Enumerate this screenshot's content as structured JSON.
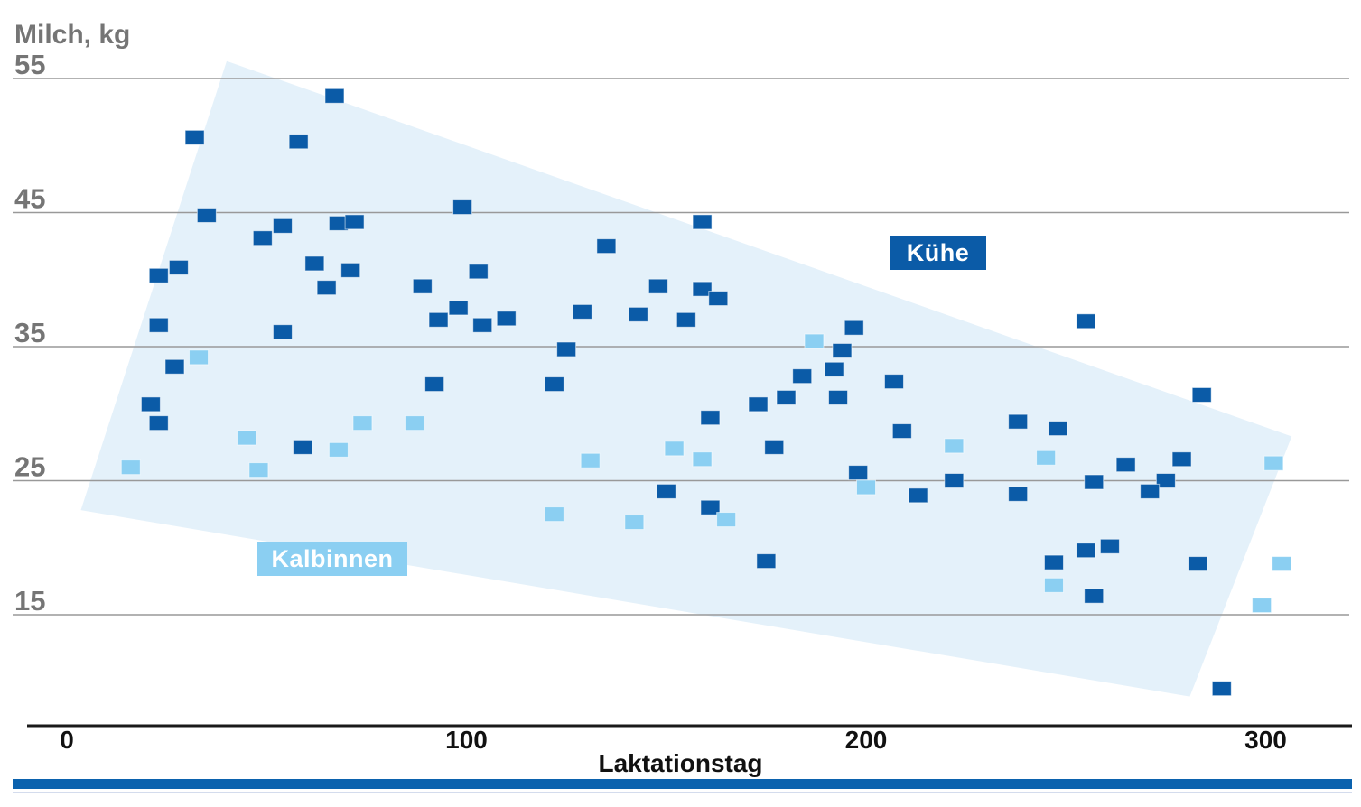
{
  "title": "Milch, kg",
  "legend": {
    "kuehe": "Kühe",
    "kalbinnen": "Kalbinnen"
  },
  "colors": {
    "dark_blue": "#0b5ba7",
    "light_blue": "#8bcff2",
    "band_fill": "#e4f1fa",
    "gridline": "#999999",
    "axis_line": "#1a1a1a",
    "bottom_bar": "#0b62ae",
    "gray_text": "#757575",
    "black_text": "#111111"
  },
  "chart_data": {
    "type": "scatter",
    "title": "Milch, kg",
    "xlabel": "Laktationstag",
    "ylabel": "Milch, kg",
    "xticks": [
      0,
      100,
      200,
      300
    ],
    "yticks": [
      55,
      45,
      35,
      25,
      15
    ],
    "xlim": [
      -17,
      324
    ],
    "ylim": [
      6.7,
      60
    ],
    "grid": "horizontal-only",
    "legend_position": {
      "kuehe": "upper-right-inside",
      "kalbinnen": "lower-left-inside"
    },
    "band_polygon": [
      [
        40,
        56.3
      ],
      [
        306.5,
        28.3
      ],
      [
        281,
        8.9
      ],
      [
        3.5,
        22.8
      ]
    ],
    "series": [
      {
        "name": "Kühe",
        "color": "#0b5ba7",
        "points": [
          [
            67,
            53.7
          ],
          [
            32,
            50.6
          ],
          [
            58,
            50.3
          ],
          [
            35,
            44.8
          ],
          [
            54,
            44.0
          ],
          [
            68,
            44.2
          ],
          [
            72,
            44.3
          ],
          [
            99,
            45.4
          ],
          [
            49,
            43.1
          ],
          [
            62,
            41.2
          ],
          [
            71,
            40.7
          ],
          [
            28,
            40.9
          ],
          [
            23,
            40.3
          ],
          [
            65,
            39.4
          ],
          [
            89,
            39.5
          ],
          [
            103,
            40.6
          ],
          [
            98,
            37.9
          ],
          [
            93,
            37.0
          ],
          [
            104,
            36.6
          ],
          [
            23,
            36.6
          ],
          [
            54,
            36.1
          ],
          [
            27,
            33.5
          ],
          [
            92,
            32.2
          ],
          [
            159,
            44.3
          ],
          [
            135,
            42.5
          ],
          [
            148,
            39.5
          ],
          [
            159,
            39.3
          ],
          [
            163,
            38.6
          ],
          [
            129,
            37.6
          ],
          [
            143,
            37.4
          ],
          [
            110,
            37.1
          ],
          [
            155,
            37.0
          ],
          [
            125,
            34.8
          ],
          [
            194,
            34.7
          ],
          [
            197,
            36.4
          ],
          [
            192,
            33.3
          ],
          [
            184,
            32.8
          ],
          [
            122,
            32.2
          ],
          [
            207,
            32.4
          ],
          [
            255,
            36.9
          ],
          [
            21,
            30.7
          ],
          [
            23,
            29.3
          ],
          [
            59,
            27.5
          ],
          [
            173,
            30.7
          ],
          [
            180,
            31.2
          ],
          [
            193,
            31.2
          ],
          [
            161,
            29.7
          ],
          [
            209,
            28.7
          ],
          [
            177,
            27.5
          ],
          [
            198,
            25.6
          ],
          [
            213,
            23.9
          ],
          [
            150,
            24.2
          ],
          [
            161,
            23.0
          ],
          [
            175,
            19.0
          ],
          [
            284,
            31.4
          ],
          [
            238,
            29.4
          ],
          [
            248,
            28.9
          ],
          [
            265,
            26.2
          ],
          [
            279,
            26.6
          ],
          [
            222,
            25.0
          ],
          [
            257,
            24.9
          ],
          [
            275,
            25.0
          ],
          [
            271,
            24.2
          ],
          [
            238,
            24.0
          ],
          [
            261,
            20.1
          ],
          [
            255,
            19.8
          ],
          [
            247,
            18.9
          ],
          [
            283,
            18.8
          ],
          [
            257,
            16.4
          ],
          [
            289,
            9.5
          ]
        ]
      },
      {
        "name": "Kalbinnen",
        "color": "#8bcff2",
        "points": [
          [
            33,
            34.2
          ],
          [
            16,
            26.0
          ],
          [
            45,
            28.2
          ],
          [
            48,
            25.8
          ],
          [
            68,
            27.3
          ],
          [
            74,
            29.3
          ],
          [
            87,
            29.3
          ],
          [
            187,
            35.4
          ],
          [
            152,
            27.4
          ],
          [
            159,
            26.6
          ],
          [
            131,
            26.5
          ],
          [
            200,
            24.5
          ],
          [
            122,
            22.5
          ],
          [
            142,
            21.9
          ],
          [
            165,
            22.1
          ],
          [
            222,
            27.6
          ],
          [
            245,
            26.7
          ],
          [
            302,
            26.3
          ],
          [
            304,
            18.8
          ],
          [
            247,
            17.2
          ],
          [
            299,
            15.7
          ]
        ]
      }
    ]
  }
}
